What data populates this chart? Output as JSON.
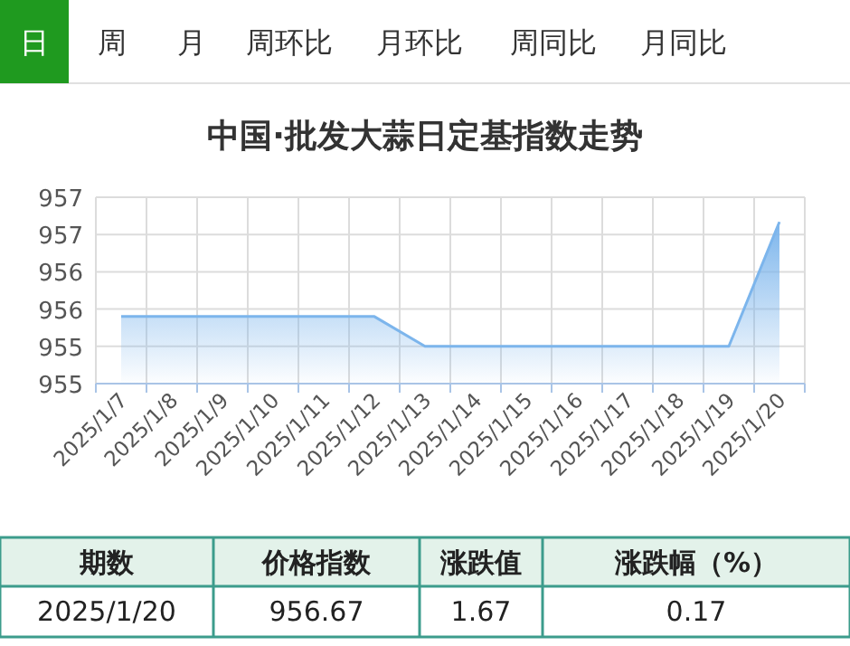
{
  "chart_data": {
    "type": "area",
    "title": "中国·批发大蒜日定基指数走势",
    "categories": [
      "2025/1/7",
      "2025/1/8",
      "2025/1/9",
      "2025/1/10",
      "2025/1/11",
      "2025/1/12",
      "2025/1/13",
      "2025/1/14",
      "2025/1/15",
      "2025/1/16",
      "2025/1/17",
      "2025/1/18",
      "2025/1/19",
      "2025/1/20"
    ],
    "values": [
      955.4,
      955.4,
      955.4,
      955.4,
      955.4,
      955.4,
      955.0,
      955.0,
      955.0,
      955.0,
      955.0,
      955.0,
      955.0,
      956.67
    ],
    "color": "#7cb5ec",
    "ylim": [
      954.5,
      957.0
    ],
    "yticks": [
      {
        "value": 954.5,
        "label": "955"
      },
      {
        "value": 955.0,
        "label": "955"
      },
      {
        "value": 955.5,
        "label": "956"
      },
      {
        "value": 956.0,
        "label": "956"
      },
      {
        "value": 956.5,
        "label": "957"
      },
      {
        "value": 957.0,
        "label": "957"
      }
    ],
    "grid": true,
    "annotations": [
      "日",
      "周",
      "月",
      "周环比",
      "月环比",
      "周同比",
      "月同比",
      "期数",
      "价格指数",
      "涨跌值",
      "涨跌幅（%）",
      "2025/1/20",
      "956.67",
      "1.67",
      "0.17"
    ]
  }
}
